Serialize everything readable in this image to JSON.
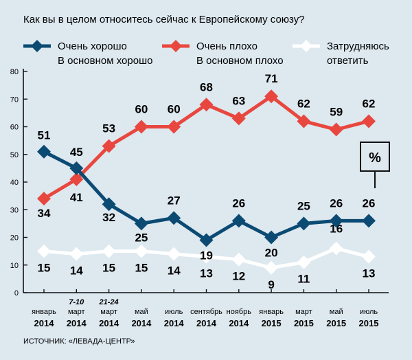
{
  "chart_data": {
    "type": "line",
    "title": "Как вы в целом относитесь сейчас к Европейскому союзу?",
    "source": "ИСТОЧНИК: «ЛЕВАДА-ЦЕНТР»",
    "unit_label": "%",
    "ylim": [
      0,
      80
    ],
    "yticks": [
      0,
      10,
      20,
      30,
      40,
      50,
      60,
      70,
      80
    ],
    "grid": false,
    "legend_position": "top",
    "categories": [
      {
        "top": "",
        "main": "январь",
        "year": "2014"
      },
      {
        "top": "7-10",
        "main": "март",
        "year": "2014"
      },
      {
        "top": "21-24",
        "main": "март",
        "year": "2014"
      },
      {
        "top": "",
        "main": "май",
        "year": "2014"
      },
      {
        "top": "",
        "main": "июль",
        "year": "2014"
      },
      {
        "top": "",
        "main": "сентябрь",
        "year": "2014"
      },
      {
        "top": "",
        "main": "ноябрь",
        "year": "2014"
      },
      {
        "top": "",
        "main": "январь",
        "year": "2015"
      },
      {
        "top": "",
        "main": "март",
        "year": "2015"
      },
      {
        "top": "",
        "main": "май",
        "year": "2015"
      },
      {
        "top": "",
        "main": "июль",
        "year": "2015"
      }
    ],
    "series": [
      {
        "name": [
          "Очень хорошо",
          "В основном хорошо"
        ],
        "color": "#0b4a73",
        "values": [
          51,
          45,
          32,
          25,
          27,
          19,
          26,
          20,
          25,
          26,
          26
        ]
      },
      {
        "name": [
          "Очень плохо",
          "В основном плохо"
        ],
        "color": "#e8473f",
        "values": [
          34,
          41,
          53,
          60,
          60,
          68,
          63,
          71,
          62,
          59,
          62
        ]
      },
      {
        "name": [
          "Затрудняюсь",
          "ответить"
        ],
        "color": "#ffffff",
        "values": [
          15,
          14,
          15,
          15,
          14,
          13,
          12,
          9,
          11,
          16,
          13
        ]
      }
    ]
  }
}
